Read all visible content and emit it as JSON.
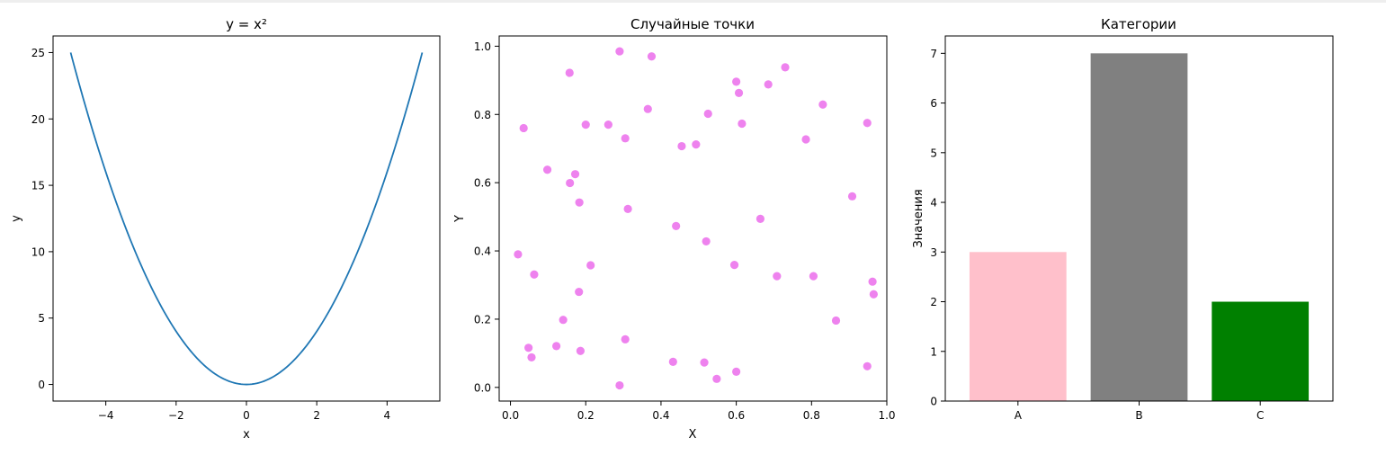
{
  "chart_data": [
    {
      "type": "line",
      "title": "y = x²",
      "xlabel": "x",
      "ylabel": "y",
      "xlim": [
        -5.5,
        5.5
      ],
      "ylim": [
        -1.25,
        26.25
      ],
      "xticks": [
        -4,
        -2,
        0,
        2,
        4
      ],
      "xtick_labels": [
        "−4",
        "−2",
        "0",
        "2",
        "4"
      ],
      "yticks": [
        0,
        5,
        10,
        15,
        20,
        25
      ],
      "ytick_labels": [
        "0",
        "5",
        "10",
        "15",
        "20",
        "25"
      ],
      "color": "#1f77b4",
      "x": [
        -5,
        -4.5,
        -4,
        -3.5,
        -3,
        -2.5,
        -2,
        -1.5,
        -1,
        -0.5,
        0,
        0.5,
        1,
        1.5,
        2,
        2.5,
        3,
        3.5,
        4,
        4.5,
        5
      ],
      "y": [
        25,
        20.25,
        16,
        12.25,
        9,
        6.25,
        4,
        2.25,
        1,
        0.25,
        0,
        0.25,
        1,
        2.25,
        4,
        6.25,
        9,
        12.25,
        16,
        20.25,
        25
      ]
    },
    {
      "type": "scatter",
      "title": "Случайные точки",
      "xlabel": "X",
      "ylabel": "Y",
      "xlim": [
        -0.03,
        1.0
      ],
      "ylim": [
        -0.04,
        1.03
      ],
      "xticks": [
        0,
        0.2,
        0.4,
        0.6,
        0.8,
        1.0
      ],
      "xtick_labels": [
        "0.0",
        "0.2",
        "0.4",
        "0.6",
        "0.8",
        "1.0"
      ],
      "yticks": [
        0,
        0.2,
        0.4,
        0.6,
        0.8,
        1.0
      ],
      "ytick_labels": [
        "0.0",
        "0.2",
        "0.4",
        "0.6",
        "0.8",
        "1.0"
      ],
      "color": "#ee82ee",
      "points": [
        [
          0.29,
          0.985
        ],
        [
          0.375,
          0.97
        ],
        [
          0.157,
          0.922
        ],
        [
          0.6,
          0.896
        ],
        [
          0.685,
          0.888
        ],
        [
          0.73,
          0.938
        ],
        [
          0.607,
          0.863
        ],
        [
          0.83,
          0.829
        ],
        [
          0.365,
          0.816
        ],
        [
          0.525,
          0.802
        ],
        [
          0.948,
          0.775
        ],
        [
          0.2,
          0.77
        ],
        [
          0.26,
          0.77
        ],
        [
          0.615,
          0.773
        ],
        [
          0.035,
          0.76
        ],
        [
          0.305,
          0.73
        ],
        [
          0.785,
          0.727
        ],
        [
          0.455,
          0.707
        ],
        [
          0.493,
          0.712
        ],
        [
          0.098,
          0.638
        ],
        [
          0.172,
          0.625
        ],
        [
          0.158,
          0.599
        ],
        [
          0.908,
          0.56
        ],
        [
          0.183,
          0.542
        ],
        [
          0.312,
          0.523
        ],
        [
          0.664,
          0.494
        ],
        [
          0.44,
          0.473
        ],
        [
          0.52,
          0.428
        ],
        [
          0.02,
          0.39
        ],
        [
          0.213,
          0.358
        ],
        [
          0.595,
          0.359
        ],
        [
          0.063,
          0.331
        ],
        [
          0.708,
          0.326
        ],
        [
          0.805,
          0.326
        ],
        [
          0.962,
          0.31
        ],
        [
          0.182,
          0.28
        ],
        [
          0.965,
          0.273
        ],
        [
          0.14,
          0.198
        ],
        [
          0.865,
          0.196
        ],
        [
          0.305,
          0.141
        ],
        [
          0.048,
          0.116
        ],
        [
          0.122,
          0.121
        ],
        [
          0.186,
          0.107
        ],
        [
          0.056,
          0.088
        ],
        [
          0.432,
          0.075
        ],
        [
          0.515,
          0.073
        ],
        [
          0.948,
          0.062
        ],
        [
          0.6,
          0.046
        ],
        [
          0.548,
          0.025
        ],
        [
          0.29,
          0.006
        ]
      ]
    },
    {
      "type": "bar",
      "title": "Категории",
      "xlabel": "",
      "ylabel": "Значения",
      "ylim": [
        0,
        7.35
      ],
      "yticks": [
        0,
        1,
        2,
        3,
        4,
        5,
        6,
        7
      ],
      "ytick_labels": [
        "0",
        "1",
        "2",
        "3",
        "4",
        "5",
        "6",
        "7"
      ],
      "categories": [
        "A",
        "B",
        "C"
      ],
      "values": [
        3,
        7,
        2
      ],
      "colors": [
        "#ffc0cb",
        "#808080",
        "#008000"
      ]
    }
  ]
}
